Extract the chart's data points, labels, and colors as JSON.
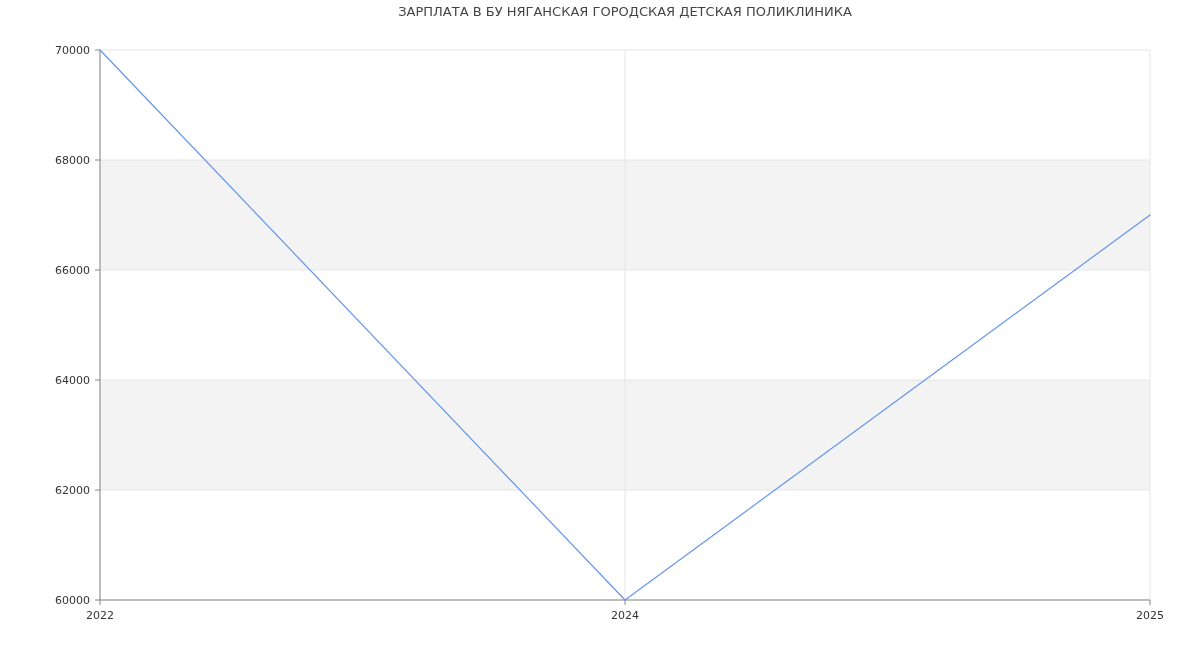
{
  "chart_data": {
    "type": "line",
    "title": "ЗАРПЛАТА В БУ НЯГАНСКАЯ ГОРОДСКАЯ ДЕТСКАЯ ПОЛИКЛИНИКА",
    "categories": [
      "2022",
      "2024",
      "2025"
    ],
    "series": [
      {
        "color": "#6495ed",
        "values": [
          70000,
          60000,
          67000
        ]
      }
    ],
    "ylim": [
      60000,
      70000
    ],
    "yticks": [
      60000,
      62000,
      64000,
      66000,
      68000,
      70000
    ],
    "grid": true,
    "marker": "none",
    "line_style": "solid"
  }
}
